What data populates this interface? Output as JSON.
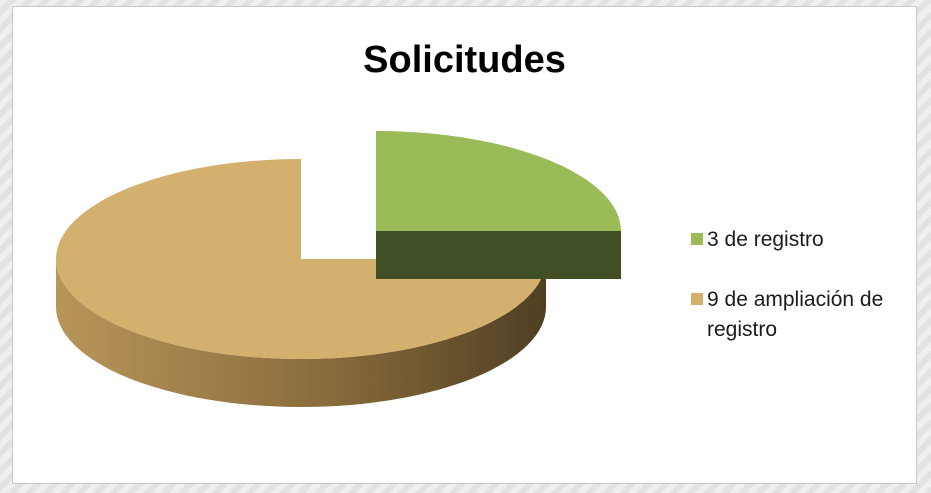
{
  "chart_data": {
    "type": "pie",
    "title": "Solicitudes",
    "categories": [
      "3 de registro",
      "9 de ampliación de registro"
    ],
    "values": [
      3,
      9
    ],
    "colors": [
      "#9bbb59",
      "#d4b06e"
    ],
    "legend_position": "right",
    "exploded": "3 de registro",
    "style": "3d"
  }
}
